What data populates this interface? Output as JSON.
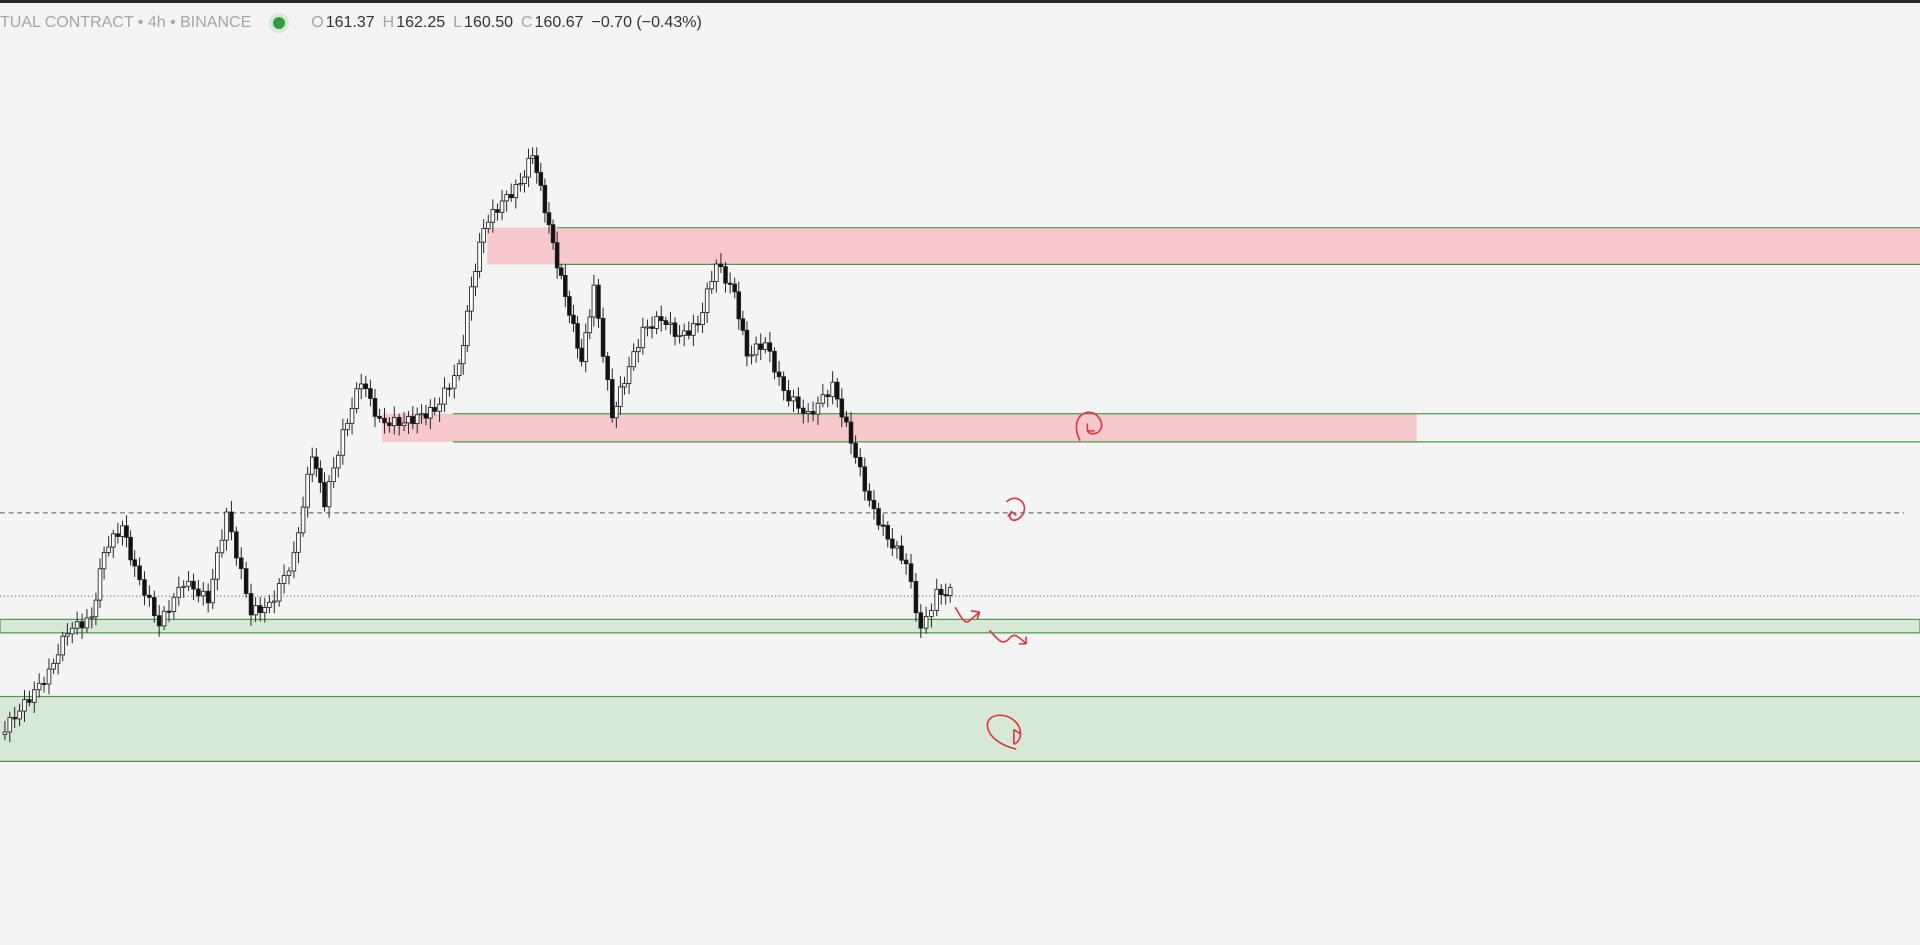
{
  "header": {
    "symbol": "TUAL CONTRACT • 4h • BINANCE",
    "ohlc": [
      {
        "label": "O",
        "value": "161.37"
      },
      {
        "label": "H",
        "value": "162.25"
      },
      {
        "label": "L",
        "value": "160.50"
      },
      {
        "label": "C",
        "value": "160.67"
      }
    ],
    "change": "−0.70 (−0.43%)"
  }
}
